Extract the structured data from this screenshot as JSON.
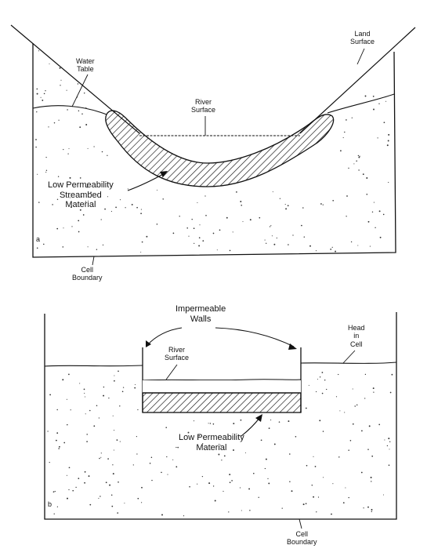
{
  "panel_a": {
    "panel_letter": "a",
    "water_table": [
      "Water",
      "Table"
    ],
    "land_surface": [
      "Land",
      "Surface"
    ],
    "river_surface": [
      "River",
      "Surface"
    ],
    "streambed": [
      "Low Permeability",
      "Streambed",
      "Material"
    ],
    "cell_boundary": [
      "Cell",
      "Boundary"
    ]
  },
  "panel_b": {
    "panel_letter": "b",
    "impermeable_walls": [
      "Impermeable",
      "Walls"
    ],
    "river_surface": [
      "River",
      "Surface"
    ],
    "head_in_cell": [
      "Head",
      "in",
      "Cell"
    ],
    "low_permeability": [
      "Low Permeability",
      "Material"
    ],
    "cell_boundary": [
      "Cell",
      "Boundary"
    ]
  },
  "colors": {
    "ink": "#111111",
    "paper": "#ffffff"
  }
}
